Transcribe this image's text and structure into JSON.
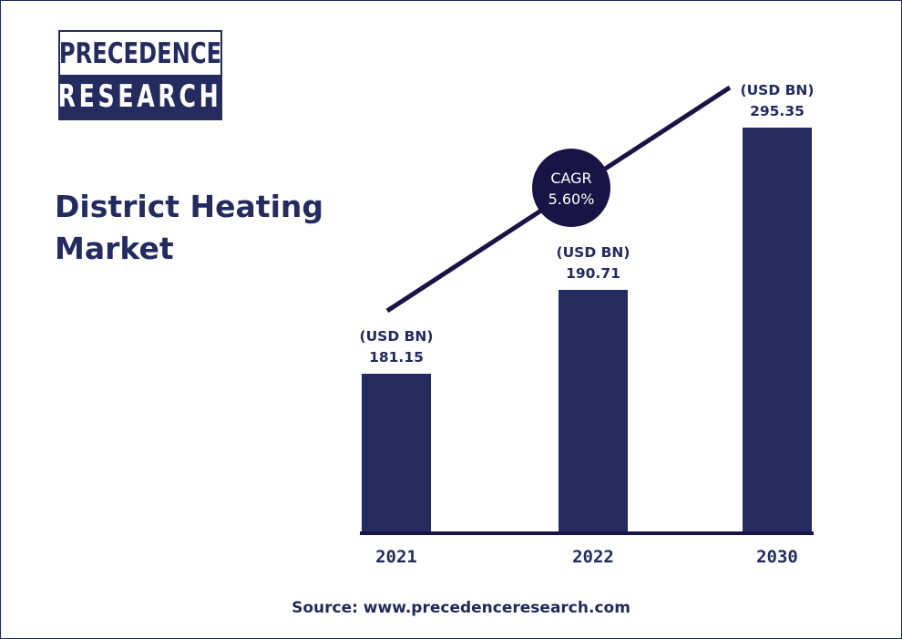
{
  "logo": {
    "line1": "PRECEDENCE",
    "line2": "RESEARCH"
  },
  "title": "District Heating Market",
  "source": "Source: www.precedenceresearch.com",
  "colors": {
    "bar": "#232b5f",
    "line": "#1a1446",
    "text": "#232b5f"
  },
  "cagr": {
    "label": "CAGR",
    "value": "5.60%"
  },
  "chart_data": {
    "type": "bar",
    "categories": [
      "2021",
      "2022",
      "2030"
    ],
    "values": [
      181.15,
      190.71,
      295.35
    ],
    "unit_label": "(USD BN)",
    "value_labels": [
      "181.15",
      "190.71",
      "295.35"
    ],
    "title": "District Heating Market",
    "xlabel": "",
    "ylabel": "",
    "grid": false
  }
}
